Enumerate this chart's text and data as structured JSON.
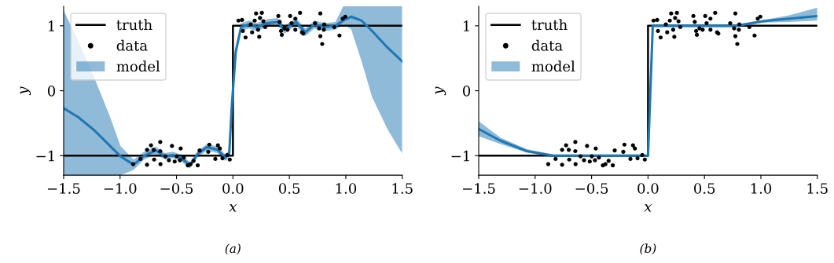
{
  "chart_data": [
    {
      "type": "line",
      "xlabel": "x",
      "ylabel": "y",
      "annotations": [
        "(a)"
      ],
      "xlim": [
        -1.5,
        1.5
      ],
      "ylim": [
        -1.3,
        1.3
      ],
      "xticks": [
        -1.5,
        {
          "value": -1,
          "label": "−1.0"
        },
        -0.5,
        {
          "value": 0,
          "label": "0.0"
        },
        0.5,
        {
          "value": 1,
          "label": "1.0"
        },
        1.5
      ],
      "yticks": [
        -1,
        0,
        1
      ],
      "legend": "top left",
      "grid": false,
      "series": [
        {
          "name": "truth",
          "type": "line",
          "color": "#000000",
          "x": [
            -1.5,
            0,
            0,
            1.5
          ],
          "values": [
            -1,
            -1,
            1,
            1
          ]
        },
        {
          "name": "data",
          "type": "scatter",
          "color": "#000000",
          "x": [
            -0.884,
            -0.819,
            -0.761,
            -0.761,
            -0.726,
            -0.702,
            -0.698,
            -0.644,
            -0.644,
            -0.642,
            -0.598,
            -0.567,
            -0.54,
            -0.516,
            -0.498,
            -0.47,
            -0.463,
            -0.435,
            -0.4,
            -0.377,
            -0.349,
            -0.312,
            -0.295,
            -0.219,
            -0.209,
            -0.156,
            -0.133,
            -0.116,
            -0.093,
            -0.051,
            -0.028,
            0.049,
            0.081,
            0.088,
            0.112,
            0.158,
            0.17,
            0.193,
            0.205,
            0.223,
            0.233,
            0.24,
            0.256,
            0.27,
            0.286,
            0.402,
            0.414,
            0.426,
            0.433,
            0.456,
            0.484,
            0.507,
            0.519,
            0.553,
            0.553,
            0.595,
            0.612,
            0.623,
            0.728,
            0.763,
            0.774,
            0.774,
            0.791,
            0.805,
            0.809,
            0.898,
            0.944,
            0.972,
            0.995
          ],
          "values": [
            -1.13,
            -1.05,
            -0.91,
            -1.14,
            -0.84,
            -0.91,
            -1.06,
            -0.79,
            -0.93,
            -1.13,
            -1.01,
            -1.07,
            -0.85,
            -1.09,
            -1.01,
            -1.07,
            -0.89,
            -1.03,
            -1.15,
            -1.13,
            -1.08,
            -1.15,
            -0.92,
            -0.94,
            -0.83,
            -1.05,
            -0.84,
            -0.89,
            -1.04,
            -0.99,
            -1.06,
            1.08,
            1.09,
            0.92,
            0.82,
            1.02,
            0.9,
            1.08,
            1.19,
            0.94,
            0.83,
            1.12,
            1.2,
            1.07,
            0.98,
            1.15,
            1.06,
            0.92,
            0.86,
            0.96,
            0.94,
            1.15,
            1.04,
            1.11,
            0.94,
            1.2,
            0.9,
            0.88,
            1.04,
            0.96,
            1.19,
            0.84,
            0.72,
            0.94,
            1.02,
            0.98,
            0.85,
            1.11,
            1.14
          ]
        },
        {
          "name": "model",
          "type": "line",
          "color": "#1f77b4",
          "x": [
            -1.5,
            -1.368,
            -1.228,
            -1.089,
            -0.996,
            -0.88,
            -0.787,
            -0.683,
            -0.602,
            -0.532,
            -0.462,
            -0.381,
            -0.311,
            -0.23,
            -0.137,
            -0.067,
            -0.033,
            -0.009,
            0.025,
            0.072,
            0.141,
            0.211,
            0.304,
            0.397,
            0.455,
            0.56,
            0.641,
            0.722,
            0.815,
            0.908,
            0.977,
            1.047,
            1.14,
            1.233,
            1.372,
            1.5
          ],
          "values": [
            -0.27,
            -0.41,
            -0.61,
            -0.85,
            -1.01,
            -1.14,
            -1.0,
            -0.92,
            -1.01,
            -0.99,
            -1.03,
            -1.15,
            -0.97,
            -0.87,
            -0.91,
            -1.03,
            -0.97,
            -0.21,
            0.6,
            0.98,
            1.02,
            0.98,
            1.04,
            1.06,
            0.94,
            1.06,
            0.9,
            1.02,
            0.98,
            1.0,
            1.08,
            1.14,
            1.08,
            0.92,
            0.66,
            0.45
          ],
          "lower": [
            -1.3,
            -1.3,
            -1.3,
            -1.3,
            -1.3,
            -1.22,
            -1.06,
            -0.98,
            -1.06,
            -1.04,
            -1.08,
            -1.2,
            -1.02,
            -0.92,
            -0.96,
            -1.08,
            -1.02,
            -0.27,
            0.54,
            0.92,
            0.96,
            0.92,
            0.98,
            1.0,
            0.88,
            1.0,
            0.84,
            0.96,
            0.92,
            0.94,
            1.02,
            0.95,
            0.45,
            -0.1,
            -0.6,
            -0.97
          ],
          "upper": [
            1.24,
            0.75,
            0.2,
            -0.4,
            -0.85,
            -1.06,
            -0.94,
            -0.86,
            -0.96,
            -0.94,
            -0.98,
            -1.1,
            -0.92,
            -0.82,
            -0.86,
            -0.98,
            -0.92,
            -0.15,
            0.66,
            1.04,
            1.08,
            1.04,
            1.1,
            1.12,
            1.0,
            1.12,
            0.96,
            1.08,
            1.04,
            1.06,
            1.3,
            1.3,
            1.3,
            1.3,
            1.3,
            1.3
          ]
        }
      ]
    },
    {
      "type": "line",
      "xlabel": "x",
      "ylabel": "y",
      "annotations": [
        "(b)"
      ],
      "xlim": [
        -1.5,
        1.5
      ],
      "ylim": [
        -1.3,
        1.3
      ],
      "xticks": [
        -1.5,
        {
          "value": -1,
          "label": "−1.0"
        },
        -0.5,
        {
          "value": 0,
          "label": "0.0"
        },
        0.5,
        {
          "value": 1,
          "label": "1.0"
        },
        1.5
      ],
      "yticks": [
        -1,
        0,
        1
      ],
      "legend": "top left",
      "grid": false,
      "series": [
        {
          "name": "truth",
          "type": "line",
          "color": "#000000",
          "x": [
            -1.5,
            0,
            0,
            1.5
          ],
          "values": [
            -1,
            -1,
            1,
            1
          ]
        },
        {
          "name": "data",
          "type": "scatter",
          "color": "#000000",
          "x": [
            -0.884,
            -0.819,
            -0.761,
            -0.761,
            -0.726,
            -0.702,
            -0.698,
            -0.644,
            -0.644,
            -0.642,
            -0.598,
            -0.567,
            -0.54,
            -0.516,
            -0.498,
            -0.47,
            -0.463,
            -0.435,
            -0.4,
            -0.377,
            -0.349,
            -0.312,
            -0.295,
            -0.219,
            -0.209,
            -0.156,
            -0.133,
            -0.116,
            -0.093,
            -0.051,
            -0.028,
            0.049,
            0.081,
            0.088,
            0.112,
            0.158,
            0.17,
            0.193,
            0.205,
            0.223,
            0.233,
            0.24,
            0.256,
            0.27,
            0.286,
            0.402,
            0.414,
            0.426,
            0.433,
            0.456,
            0.484,
            0.507,
            0.519,
            0.553,
            0.553,
            0.595,
            0.612,
            0.623,
            0.728,
            0.763,
            0.774,
            0.774,
            0.791,
            0.805,
            0.809,
            0.898,
            0.944,
            0.972,
            0.995
          ],
          "values": [
            -1.13,
            -1.05,
            -0.91,
            -1.14,
            -0.84,
            -0.91,
            -1.06,
            -0.79,
            -0.93,
            -1.13,
            -1.01,
            -1.07,
            -0.85,
            -1.09,
            -1.01,
            -1.07,
            -0.89,
            -1.03,
            -1.15,
            -1.13,
            -1.08,
            -1.15,
            -0.92,
            -0.94,
            -0.83,
            -1.05,
            -0.84,
            -0.89,
            -1.04,
            -0.99,
            -1.06,
            1.08,
            1.09,
            0.92,
            0.82,
            1.02,
            0.9,
            1.08,
            1.19,
            0.94,
            0.83,
            1.12,
            1.2,
            1.07,
            0.98,
            1.15,
            1.06,
            0.92,
            0.86,
            0.96,
            0.94,
            1.15,
            1.04,
            1.11,
            0.94,
            1.2,
            0.9,
            0.88,
            1.04,
            0.96,
            1.19,
            0.84,
            0.72,
            0.94,
            1.02,
            0.98,
            0.85,
            1.11,
            1.14
          ]
        },
        {
          "name": "model",
          "type": "line",
          "color": "#1f77b4",
          "x": [
            -1.5,
            -1.307,
            -1.074,
            -0.842,
            -0.5,
            -0.016,
            0.0,
            0.042,
            0.553,
            0.786,
            1.019,
            1.251,
            1.5
          ],
          "values": [
            -0.59,
            -0.77,
            -0.93,
            -1.0,
            -1.0,
            -1.0,
            -1.0,
            1.0,
            1.0,
            1.0,
            1.07,
            1.11,
            1.15
          ],
          "lower": [
            -0.7,
            -0.82,
            -0.95,
            -1.02,
            -1.02,
            -1.02,
            -1.02,
            0.98,
            0.98,
            0.98,
            1.05,
            1.06,
            1.08
          ],
          "upper": [
            -0.47,
            -0.72,
            -0.9,
            -0.98,
            -0.98,
            -0.98,
            -0.98,
            1.02,
            1.02,
            1.02,
            1.09,
            1.16,
            1.28
          ]
        }
      ]
    }
  ]
}
